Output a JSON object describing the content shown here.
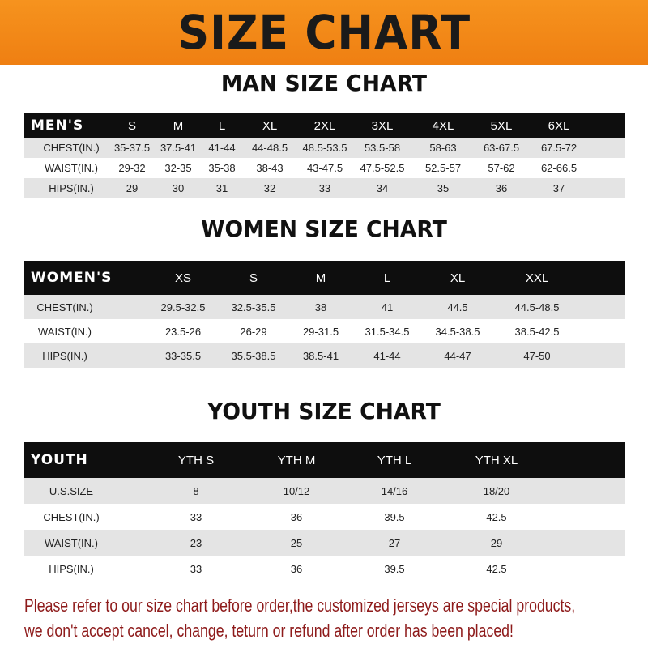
{
  "title": "SIZE CHART",
  "men": {
    "heading": "MAN SIZE CHART",
    "columns": [
      "MEN'S",
      "S",
      "M",
      "L",
      "XL",
      "2XL",
      "3XL",
      "4XL",
      "5XL",
      "6XL"
    ],
    "rows": [
      [
        "CHEST(IN.)",
        "35-37.5",
        "37.5-41",
        "41-44",
        "44-48.5",
        "48.5-53.5",
        "53.5-58",
        "58-63",
        "63-67.5",
        "67.5-72"
      ],
      [
        "WAIST(IN.)",
        "29-32",
        "32-35",
        "35-38",
        "38-43",
        "43-47.5",
        "47.5-52.5",
        "52.5-57",
        "57-62",
        "62-66.5"
      ],
      [
        "HIPS(IN.)",
        "29",
        "30",
        "31",
        "32",
        "33",
        "34",
        "35",
        "36",
        "37"
      ]
    ]
  },
  "women": {
    "heading": "WOMEN SIZE CHART",
    "columns": [
      "WOMEN'S",
      "XS",
      "S",
      "M",
      "L",
      "XL",
      "XXL"
    ],
    "rows": [
      [
        "CHEST(IN.)",
        "29.5-32.5",
        "32.5-35.5",
        "38",
        "41",
        "44.5",
        "44.5-48.5"
      ],
      [
        "WAIST(IN.)",
        "23.5-26",
        "26-29",
        "29-31.5",
        "31.5-34.5",
        "34.5-38.5",
        "38.5-42.5"
      ],
      [
        "HIPS(IN.)",
        "33-35.5",
        "35.5-38.5",
        "38.5-41",
        "41-44",
        "44-47",
        "47-50"
      ]
    ]
  },
  "youth": {
    "heading": "YOUTH SIZE CHART",
    "columns": [
      "YOUTH",
      "YTH S",
      "YTH M",
      "YTH L",
      "YTH XL"
    ],
    "rows": [
      [
        "U.S.SIZE",
        "8",
        "10/12",
        "14/16",
        "18/20"
      ],
      [
        "CHEST(IN.)",
        "33",
        "36",
        "39.5",
        "42.5"
      ],
      [
        "WAIST(IN.)",
        "23",
        "25",
        "27",
        "29"
      ],
      [
        "HIPS(IN.)",
        "33",
        "36",
        "39.5",
        "42.5"
      ]
    ]
  },
  "note": {
    "line1": "Please refer to our size chart before order,the customized jerseys are special products,",
    "line2": "we don't accept cancel, change, teturn or refund after order has been placed!"
  },
  "colors": {
    "banner": "#f08a1c",
    "header_row": "#0e0e0e",
    "stripe": "#e4e4e4",
    "note_text": "#8e1b1b"
  }
}
